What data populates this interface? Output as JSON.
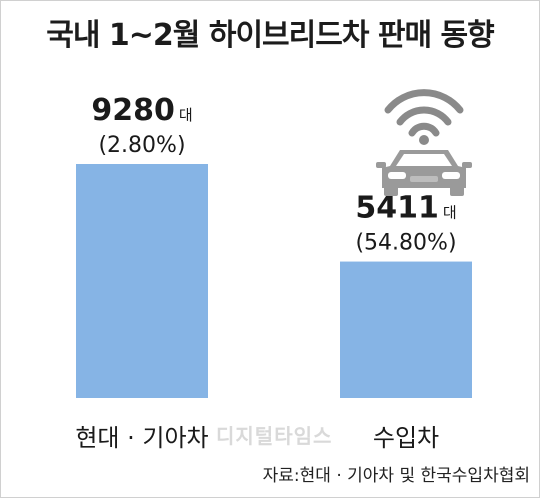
{
  "title": "국내 1~2월 하이브리드차 판매 동향",
  "source": "자료:현대 · 기아차 및 한국수입차협회",
  "watermark": "디지털타임스",
  "icons": [
    "connected-car-icon"
  ],
  "colors": {
    "bar": "#86b4e5",
    "text": "#1a1a1a"
  },
  "chart_data": {
    "type": "bar",
    "title": "국내 1~2월 하이브리드차 판매 동향",
    "xlabel": "",
    "ylabel": "",
    "categories": [
      "현대 · 기아차",
      "수입차"
    ],
    "values": [
      9280,
      5411
    ],
    "value_unit": "대",
    "value_labels": [
      "9280",
      "5411"
    ],
    "share_labels": [
      "(2.80%)",
      "(54.80%)"
    ],
    "ylim": [
      0,
      9280
    ],
    "grid": false,
    "legend": "none"
  }
}
